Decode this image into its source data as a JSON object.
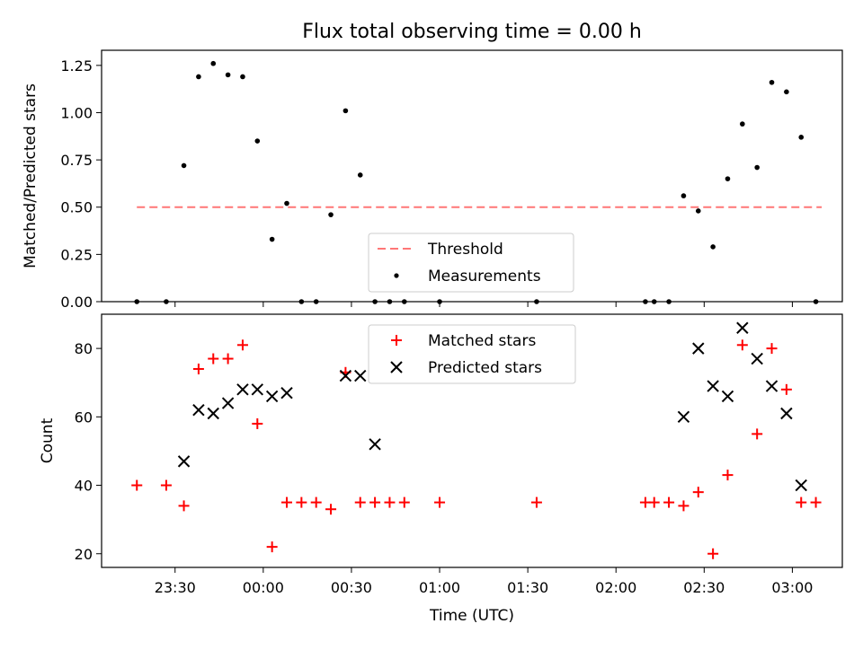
{
  "title": "Flux total observing time = 0.00 h",
  "colors": {
    "threshold": "#ff7777",
    "measurement": "#000000",
    "matched": "#ff0000",
    "predicted": "#000000"
  },
  "chart_data": [
    {
      "type": "scatter",
      "ylabel": "Matched/Predicted stars",
      "ylim": [
        0,
        1.33
      ],
      "x_range": [
        "23:05",
        "03:17"
      ],
      "yticks": [
        0.0,
        0.25,
        0.5,
        0.75,
        1.0,
        1.25
      ],
      "ytick_labels": [
        "0.00",
        "0.25",
        "0.50",
        "0.75",
        "1.00",
        "1.25"
      ],
      "legend": [
        "Threshold",
        "Measurements"
      ],
      "legend_placement": "lower-center",
      "threshold": {
        "name": "Threshold",
        "value": 0.5,
        "x": [
          "23:17",
          "03:10"
        ]
      },
      "series": [
        {
          "name": "Measurements",
          "x": [
            "23:17",
            "23:27",
            "23:33",
            "23:38",
            "23:43",
            "23:48",
            "23:53",
            "23:58",
            "00:03",
            "00:08",
            "00:13",
            "00:18",
            "00:23",
            "00:28",
            "00:33",
            "00:38",
            "00:43",
            "00:48",
            "01:00",
            "01:33",
            "02:10",
            "02:13",
            "02:18",
            "02:23",
            "02:28",
            "02:33",
            "02:38",
            "02:43",
            "02:48",
            "02:53",
            "02:58",
            "03:03",
            "03:08"
          ],
          "y": [
            0.0,
            0.0,
            0.72,
            1.19,
            1.26,
            1.2,
            1.19,
            0.85,
            0.33,
            0.52,
            0.0,
            0.0,
            0.46,
            1.01,
            0.67,
            0.0,
            0.0,
            0.0,
            0.0,
            0.0,
            0.0,
            0.0,
            0.0,
            0.56,
            0.48,
            0.29,
            0.65,
            0.94,
            0.71,
            1.16,
            1.11,
            0.87,
            0.0
          ]
        }
      ]
    },
    {
      "type": "scatter",
      "xlabel": "Time (UTC)",
      "ylabel": "Count",
      "ylim": [
        16,
        90
      ],
      "x_range": [
        "23:05",
        "03:17"
      ],
      "xticks": [
        "23:30",
        "00:00",
        "00:30",
        "01:00",
        "01:30",
        "02:00",
        "02:30",
        "03:00"
      ],
      "yticks": [
        20,
        40,
        60,
        80
      ],
      "legend": [
        "Matched stars",
        "Predicted stars"
      ],
      "legend_placement": "upper-center",
      "series": [
        {
          "name": "Matched stars",
          "marker": "+",
          "x": [
            "23:17",
            "23:27",
            "23:33",
            "23:38",
            "23:43",
            "23:48",
            "23:53",
            "23:58",
            "00:03",
            "00:08",
            "00:13",
            "00:18",
            "00:23",
            "00:28",
            "00:33",
            "00:38",
            "00:43",
            "00:48",
            "01:00",
            "01:33",
            "02:10",
            "02:13",
            "02:18",
            "02:23",
            "02:28",
            "02:33",
            "02:38",
            "02:43",
            "02:48",
            "02:53",
            "02:58",
            "03:03",
            "03:08"
          ],
          "y": [
            40,
            40,
            34,
            74,
            77,
            77,
            81,
            58,
            22,
            35,
            35,
            35,
            33,
            73,
            35,
            35,
            35,
            35,
            35,
            35,
            35,
            35,
            35,
            34,
            38,
            20,
            43,
            81,
            55,
            80,
            68,
            35,
            35
          ]
        },
        {
          "name": "Predicted stars",
          "marker": "x",
          "x": [
            "23:33",
            "23:38",
            "23:43",
            "23:48",
            "23:53",
            "23:58",
            "00:03",
            "00:08",
            "00:28",
            "00:33",
            "00:38",
            "02:23",
            "02:28",
            "02:33",
            "02:38",
            "02:43",
            "02:48",
            "02:53",
            "02:58",
            "03:03"
          ],
          "y": [
            47,
            62,
            61,
            64,
            68,
            68,
            66,
            67,
            72,
            72,
            52,
            60,
            80,
            69,
            66,
            86,
            77,
            69,
            61,
            40
          ]
        }
      ]
    }
  ]
}
